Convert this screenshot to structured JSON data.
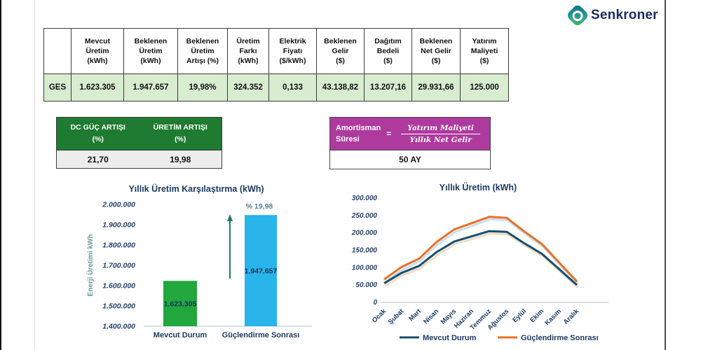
{
  "brand": {
    "name": "Senkroner"
  },
  "colors": {
    "navy_text": "#1b3a63",
    "table_row_green": "#d8ecd0",
    "gain_header_green": "#1e7b31",
    "amort_magenta": "#ae3a9e",
    "bar_green": "#22a73e",
    "bar_blue": "#29b4ea",
    "line_navy": "#174f71",
    "line_orange": "#e87126"
  },
  "main_table": {
    "corner": "",
    "row_label": "GES",
    "headers": [
      "Mevcut\nÜretim\n(kWh)",
      "Beklenen\nÜretim\n(kWh)",
      "Beklenen\nÜretim\nArtışı (%)",
      "Üretim\nFarkı\n(kWh)",
      "Elektrik\nFiyatı\n($/kWh)",
      "Beklenen\nGelir\n($)",
      "Dağıtım\nBedeli\n($)",
      "Beklenen\nNet Gelir\n($)",
      "Yatırım\nMaliyeti\n($)"
    ],
    "values": [
      "1.623.305",
      "1.947.657",
      "19,98%",
      "324.352",
      "0,133",
      "43.138,82",
      "13.207,16",
      "29.931,66",
      "125.000"
    ]
  },
  "gain_table": {
    "headers": [
      "DC GÜÇ ARTIŞI\n(%)",
      "ÜRETİM ARTIŞI\n(%)"
    ],
    "values": [
      "21,70",
      "19,98"
    ]
  },
  "amortization": {
    "label": "Amortisman\nSüresi",
    "equals": "=",
    "numerator": "Yatırım Maliyeti",
    "denominator": "Yıllık Net Gelir",
    "value": "50 AY"
  },
  "chart_data": [
    {
      "type": "bar",
      "title": "Yıllık Üretim Karşılaştırma (kWh)",
      "ylabel": "Enerji Üretimi kWh",
      "categories": [
        "Mevcut Durum",
        "Güçlendirme Sonrası"
      ],
      "values": [
        1623305,
        1947657
      ],
      "bar_labels": [
        "1.623.305",
        "1.947.657"
      ],
      "bar_colors": [
        "#22a73e",
        "#29b4ea"
      ],
      "annotation": "% 19,98",
      "arrow_color": "#1f7a5e",
      "ylim": [
        1400000,
        2000000
      ],
      "ytick_step": 100000,
      "grid": false,
      "legend_position": "none"
    },
    {
      "type": "line",
      "title": "Yıllık Üretim (kWh)",
      "categories": [
        "Ocak",
        "Şubat",
        "Mart",
        "Nisan",
        "Mayıs",
        "Haziran",
        "Temmuz",
        "Ağustos",
        "Eylül",
        "Ekim",
        "Kasım",
        "Aralık"
      ],
      "series": [
        {
          "name": "Mevcut Durum",
          "color": "#174f71",
          "shadow": "#f0dcc4",
          "values": [
            55000,
            85000,
            105000,
            145000,
            175000,
            190000,
            205000,
            203000,
            170000,
            140000,
            95000,
            50000
          ]
        },
        {
          "name": "Güçlendirme Sonrası",
          "color": "#e87126",
          "shadow": "#c9e0f0",
          "values": [
            66000,
            102000,
            126000,
            174000,
            210000,
            228000,
            246000,
            243000,
            204000,
            168000,
            114000,
            60000
          ]
        }
      ],
      "ylim": [
        0,
        300000
      ],
      "ytick_step": 50000,
      "grid": false,
      "legend_position": "bottom"
    }
  ]
}
